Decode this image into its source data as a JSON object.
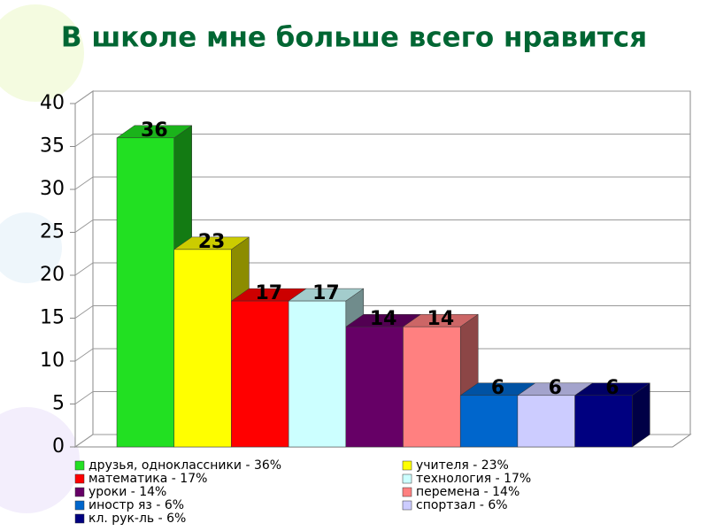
{
  "chart_data": {
    "type": "bar3d",
    "title": "В школе мне больше всего нравится",
    "categories": [
      "друзья, одноклассники - 36%",
      "учителя - 23%",
      "математика - 17%",
      "технология - 17%",
      "уроки - 14%",
      "перемена - 14%",
      "иностр яз - 6%",
      "спортзал - 6%",
      "кл. рук-ль - 6%"
    ],
    "values": [
      36,
      23,
      17,
      17,
      14,
      14,
      6,
      6,
      6
    ],
    "colors": [
      "#22e022",
      "#ffff00",
      "#ff0000",
      "#ccffff",
      "#660066",
      "#ff8080",
      "#0066cc",
      "#ccccff",
      "#000080"
    ],
    "ylim": [
      0,
      40
    ],
    "yticks": [
      0,
      5,
      10,
      15,
      20,
      25,
      30,
      35,
      40
    ],
    "grid": true
  }
}
